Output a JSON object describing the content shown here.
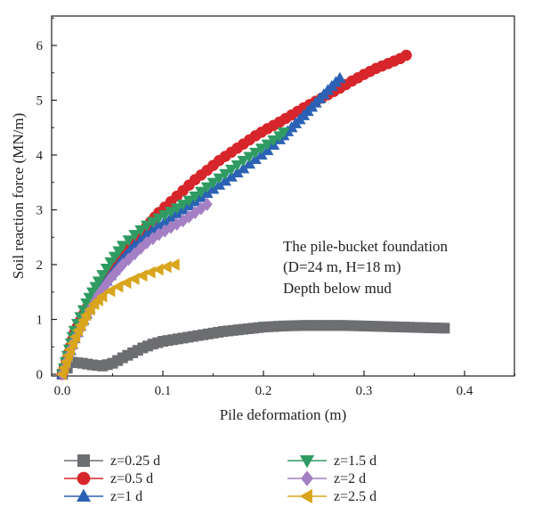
{
  "chart_data": {
    "type": "scatter",
    "title": "",
    "xlabel": "Pile deformation (m)",
    "ylabel": "Soil reaction force (MN/m)",
    "xlim": [
      -0.01,
      0.45
    ],
    "ylim": [
      -0.1,
      6.6
    ],
    "xticks": [
      "0.0",
      "0.1",
      "0.2",
      "0.3",
      "0.4"
    ],
    "yticks": [
      "0",
      "1",
      "2",
      "3",
      "4",
      "5",
      "6"
    ],
    "grid": false,
    "legend_position": "bottom",
    "annotation": [
      "The pile-bucket foundation",
      "(D=24 m, H=18 m)",
      "Depth below mud"
    ],
    "series": [
      {
        "name": "z=0.25 d",
        "color": "#6d6e71",
        "marker": "square",
        "x": [
          0,
          0.01,
          0.02,
          0.03,
          0.04,
          0.05,
          0.06,
          0.07,
          0.08,
          0.09,
          0.1,
          0.11,
          0.12,
          0.13,
          0.14,
          0.15,
          0.16,
          0.17,
          0.18,
          0.19,
          0.2,
          0.21,
          0.22,
          0.23,
          0.24,
          0.25,
          0.26,
          0.27,
          0.28,
          0.29,
          0.3,
          0.31,
          0.32,
          0.33,
          0.34,
          0.35,
          0.36,
          0.37,
          0.38
        ],
        "y": [
          0,
          0.22,
          0.2,
          0.17,
          0.15,
          0.2,
          0.3,
          0.39,
          0.48,
          0.55,
          0.6,
          0.63,
          0.66,
          0.69,
          0.72,
          0.75,
          0.78,
          0.8,
          0.82,
          0.84,
          0.86,
          0.87,
          0.88,
          0.885,
          0.89,
          0.89,
          0.89,
          0.89,
          0.89,
          0.885,
          0.88,
          0.875,
          0.87,
          0.865,
          0.86,
          0.855,
          0.85,
          0.845,
          0.84
        ]
      },
      {
        "name": "z=0.5 d",
        "color": "#d7262b",
        "marker": "circle",
        "x": [
          0,
          0.012,
          0.024,
          0.036,
          0.048,
          0.06,
          0.072,
          0.084,
          0.096,
          0.108,
          0.12,
          0.132,
          0.144,
          0.156,
          0.168,
          0.18,
          0.192,
          0.204,
          0.216,
          0.228,
          0.24,
          0.252,
          0.264,
          0.276,
          0.288,
          0.3,
          0.312,
          0.324,
          0.336,
          0.342
        ],
        "y": [
          0,
          0.75,
          1.2,
          1.55,
          1.85,
          2.15,
          2.45,
          2.7,
          2.95,
          3.15,
          3.35,
          3.55,
          3.72,
          3.9,
          4.05,
          4.2,
          4.35,
          4.48,
          4.6,
          4.73,
          4.86,
          4.98,
          5.1,
          5.22,
          5.35,
          5.47,
          5.58,
          5.67,
          5.76,
          5.82
        ]
      },
      {
        "name": "z=1 d",
        "color": "#2b62b5",
        "marker": "triangle-up",
        "x": [
          0,
          0.012,
          0.024,
          0.036,
          0.048,
          0.06,
          0.072,
          0.084,
          0.096,
          0.108,
          0.12,
          0.132,
          0.144,
          0.156,
          0.168,
          0.18,
          0.192,
          0.204,
          0.216,
          0.228,
          0.24,
          0.252,
          0.264,
          0.276
        ],
        "y": [
          0,
          0.65,
          1.1,
          1.5,
          1.8,
          2.1,
          2.35,
          2.55,
          2.72,
          2.86,
          3.0,
          3.15,
          3.3,
          3.45,
          3.6,
          3.75,
          3.92,
          4.08,
          4.28,
          4.5,
          4.72,
          4.95,
          5.18,
          5.4
        ]
      },
      {
        "name": "z=1.5 d",
        "color": "#2f9b62",
        "marker": "triangle-down",
        "x": [
          0,
          0.012,
          0.024,
          0.036,
          0.048,
          0.06,
          0.072,
          0.084,
          0.096,
          0.108,
          0.12,
          0.132,
          0.144,
          0.156,
          0.168,
          0.18,
          0.192,
          0.204,
          0.216,
          0.22
        ],
        "y": [
          0,
          0.8,
          1.3,
          1.7,
          2.05,
          2.35,
          2.55,
          2.72,
          2.85,
          2.97,
          3.1,
          3.25,
          3.42,
          3.58,
          3.74,
          3.9,
          4.05,
          4.2,
          4.35,
          4.42
        ]
      },
      {
        "name": "z=2 d",
        "color": "#a47fc4",
        "marker": "diamond",
        "x": [
          0,
          0.012,
          0.024,
          0.036,
          0.048,
          0.06,
          0.072,
          0.084,
          0.096,
          0.108,
          0.12,
          0.132,
          0.144
        ],
        "y": [
          0,
          0.6,
          1.05,
          1.45,
          1.75,
          2.0,
          2.2,
          2.4,
          2.55,
          2.68,
          2.8,
          2.95,
          3.1
        ]
      },
      {
        "name": "z=2.5 d",
        "color": "#d8a51d",
        "marker": "triangle-left",
        "x": [
          0,
          0.008,
          0.016,
          0.024,
          0.032,
          0.04,
          0.048,
          0.056,
          0.064,
          0.072,
          0.08,
          0.088,
          0.096,
          0.104,
          0.112
        ],
        "y": [
          0,
          0.45,
          0.8,
          1.08,
          1.28,
          1.42,
          1.52,
          1.6,
          1.67,
          1.74,
          1.8,
          1.86,
          1.91,
          1.96,
          2.0
        ]
      }
    ]
  }
}
